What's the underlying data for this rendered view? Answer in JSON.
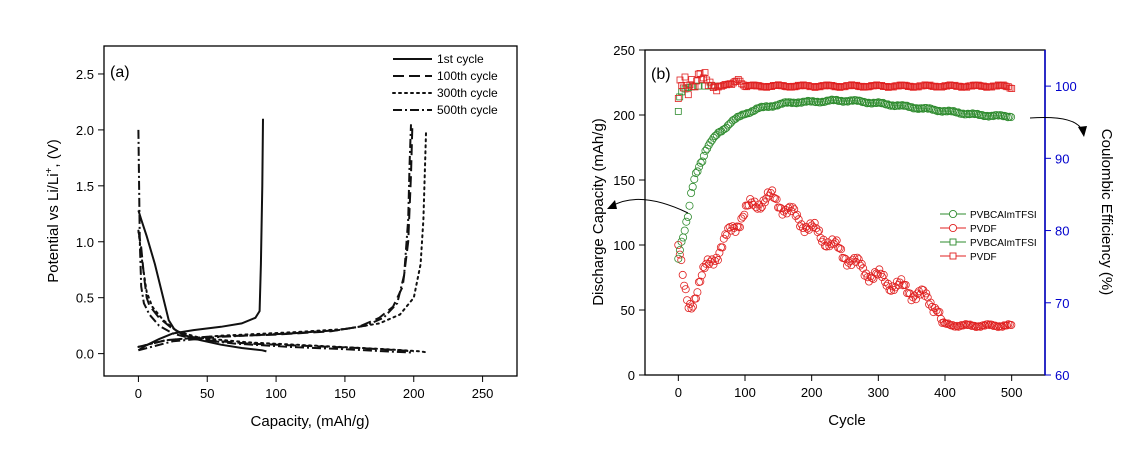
{
  "chart_data": [
    {
      "type": "line",
      "panel_label": "(a)",
      "xlabel": "Capacity, (mAh/g)",
      "ylabel_main": "Potential vs Li/Li",
      "ylabel_sup": "+",
      "ylabel_tail": ", (V)",
      "xlim": [
        -25,
        275
      ],
      "ylim": [
        -0.2,
        2.75
      ],
      "xticks": [
        0,
        50,
        100,
        150,
        200,
        250
      ],
      "yticks": [
        0.0,
        0.5,
        1.0,
        1.5,
        2.0,
        2.5
      ],
      "ytick_labels": [
        "0.0",
        "0.5",
        "1.0",
        "1.5",
        "2.0",
        "2.5"
      ],
      "legend_position": "top-right",
      "series": [
        {
          "name": "1st cycle",
          "dash": "solid",
          "discharge": [
            [
              0,
              1.28
            ],
            [
              2,
              1.2
            ],
            [
              6,
              1.05
            ],
            [
              12,
              0.8
            ],
            [
              18,
              0.5
            ],
            [
              22,
              0.3
            ],
            [
              26,
              0.22
            ],
            [
              32,
              0.17
            ],
            [
              45,
              0.12
            ],
            [
              60,
              0.08
            ],
            [
              75,
              0.05
            ],
            [
              90,
              0.03
            ],
            [
              93,
              0.02
            ]
          ],
          "charge": [
            [
              0,
              0.03
            ],
            [
              5,
              0.07
            ],
            [
              15,
              0.13
            ],
            [
              25,
              0.18
            ],
            [
              40,
              0.21
            ],
            [
              60,
              0.24
            ],
            [
              75,
              0.27
            ],
            [
              85,
              0.32
            ],
            [
              88,
              0.38
            ],
            [
              89,
              0.8
            ],
            [
              90,
              1.5
            ],
            [
              90.5,
              2.1
            ]
          ]
        },
        {
          "name": "100th cycle",
          "dash": "long-dash",
          "discharge": [
            [
              0,
              1.1
            ],
            [
              2,
              0.95
            ],
            [
              4,
              0.7
            ],
            [
              6,
              0.5
            ],
            [
              8,
              0.43
            ],
            [
              15,
              0.32
            ],
            [
              25,
              0.22
            ],
            [
              35,
              0.16
            ],
            [
              50,
              0.12
            ],
            [
              80,
              0.09
            ],
            [
              120,
              0.07
            ],
            [
              160,
              0.05
            ],
            [
              190,
              0.03
            ],
            [
              200,
              0.02
            ]
          ],
          "charge": [
            [
              0,
              0.06
            ],
            [
              20,
              0.12
            ],
            [
              50,
              0.15
            ],
            [
              100,
              0.17
            ],
            [
              140,
              0.2
            ],
            [
              160,
              0.24
            ],
            [
              175,
              0.32
            ],
            [
              185,
              0.42
            ],
            [
              192,
              0.6
            ],
            [
              196,
              1.0
            ],
            [
              198,
              1.6
            ],
            [
              199,
              2.05
            ]
          ]
        },
        {
          "name": "300th cycle",
          "dash": "dotted",
          "discharge": [
            [
              0,
              1.1
            ],
            [
              3,
              0.8
            ],
            [
              6,
              0.55
            ],
            [
              10,
              0.42
            ],
            [
              18,
              0.3
            ],
            [
              28,
              0.2
            ],
            [
              45,
              0.14
            ],
            [
              80,
              0.1
            ],
            [
              130,
              0.07
            ],
            [
              180,
              0.04
            ],
            [
              205,
              0.02
            ],
            [
              210,
              0.01
            ]
          ],
          "charge": [
            [
              0,
              0.06
            ],
            [
              20,
              0.12
            ],
            [
              60,
              0.16
            ],
            [
              110,
              0.19
            ],
            [
              150,
              0.22
            ],
            [
              175,
              0.27
            ],
            [
              190,
              0.35
            ],
            [
              200,
              0.5
            ],
            [
              205,
              0.8
            ],
            [
              207,
              1.2
            ],
            [
              209,
              2.0
            ]
          ]
        },
        {
          "name": "500th cycle",
          "dash": "dash-dot",
          "discharge": [
            [
              0,
              2.0
            ],
            [
              0.5,
              1.5
            ],
            [
              1,
              1.0
            ],
            [
              2,
              0.6
            ],
            [
              4,
              0.45
            ],
            [
              8,
              0.35
            ],
            [
              15,
              0.25
            ],
            [
              25,
              0.18
            ],
            [
              40,
              0.13
            ],
            [
              70,
              0.09
            ],
            [
              110,
              0.06
            ],
            [
              150,
              0.04
            ],
            [
              180,
              0.02
            ],
            [
              198,
              0.01
            ]
          ],
          "charge": [
            [
              0,
              0.03
            ],
            [
              25,
              0.11
            ],
            [
              60,
              0.15
            ],
            [
              110,
              0.18
            ],
            [
              145,
              0.21
            ],
            [
              165,
              0.25
            ],
            [
              178,
              0.32
            ],
            [
              188,
              0.45
            ],
            [
              193,
              0.7
            ],
            [
              196,
              1.2
            ],
            [
              197,
              1.7
            ],
            [
              198,
              2.05
            ]
          ]
        }
      ]
    },
    {
      "type": "scatter",
      "panel_label": "(b)",
      "xlabel": "Cycle",
      "ylabel_left": "Discharge Capacity (mAh/g)",
      "ylabel_right": "Coulombic Efficiency (%)",
      "xlim": [
        -50,
        550
      ],
      "ylim_left": [
        0,
        250
      ],
      "ylim_right": [
        60,
        105
      ],
      "xticks": [
        0,
        100,
        200,
        300,
        400,
        500
      ],
      "yticks_left": [
        0,
        50,
        100,
        150,
        200,
        250
      ],
      "yticks_right": [
        60,
        70,
        80,
        90,
        100
      ],
      "right_axis_color": "#0000cc",
      "legend_position": "center-right",
      "legend": [
        {
          "name": "PVBCAImTFSI",
          "marker": "circle",
          "color": "#2e8b2e"
        },
        {
          "name": "PVDF",
          "marker": "circle",
          "color": "#e02020"
        },
        {
          "name": "PVBCAImTFSI",
          "marker": "square",
          "color": "#2e8b2e"
        },
        {
          "name": "PVDF",
          "marker": "square",
          "color": "#e02020"
        }
      ],
      "capacity_pvbca": {
        "x": [
          0,
          3,
          6,
          10,
          15,
          20,
          25,
          30,
          40,
          50,
          60,
          70,
          80,
          90,
          100,
          120,
          140,
          160,
          180,
          200,
          230,
          260,
          300,
          350,
          400,
          450,
          490,
          500
        ],
        "y": [
          92,
          100,
          105,
          112,
          122,
          140,
          152,
          160,
          172,
          180,
          186,
          190,
          195,
          198,
          201,
          205,
          207,
          209,
          210,
          210,
          211,
          211,
          209,
          206,
          203,
          200,
          199,
          199
        ]
      },
      "capacity_pvdf": {
        "x": [
          0,
          3,
          6,
          10,
          15,
          20,
          25,
          30,
          40,
          50,
          60,
          70,
          80,
          90,
          100,
          110,
          120,
          130,
          140,
          150,
          160,
          180,
          200,
          220,
          240,
          260,
          280,
          300,
          320,
          340,
          360,
          380,
          390,
          395,
          400,
          420,
          440,
          460,
          480,
          500
        ],
        "y": [
          100,
          90,
          75,
          62,
          52,
          55,
          62,
          70,
          80,
          88,
          95,
          103,
          112,
          118,
          125,
          130,
          133,
          135,
          136,
          133,
          128,
          120,
          112,
          105,
          96,
          88,
          80,
          75,
          70,
          66,
          62,
          56,
          52,
          40,
          39,
          38,
          38,
          38,
          38,
          38
        ]
      },
      "efficiency_pvbca": {
        "x": [
          0,
          2,
          5,
          10,
          15,
          20,
          30,
          40,
          50,
          60
        ],
        "y": [
          96.5,
          98.5,
          99.2,
          99.6,
          99.8,
          99.9,
          100,
          100,
          100,
          100
        ]
      },
      "efficiency_pvdf": {
        "x": [
          0,
          3,
          6,
          10,
          15,
          20,
          25,
          30,
          35,
          40,
          45,
          50,
          60,
          80,
          90,
          100,
          150,
          200,
          250,
          300,
          350,
          400,
          450,
          490,
          500
        ],
        "y": [
          98,
          100.5,
          99,
          101,
          99.5,
          101.5,
          100,
          101.8,
          100.5,
          101,
          100,
          100.5,
          100,
          100.2,
          101,
          100,
          100,
          100,
          100,
          100,
          100,
          100,
          100,
          100,
          99.8
        ]
      }
    }
  ]
}
